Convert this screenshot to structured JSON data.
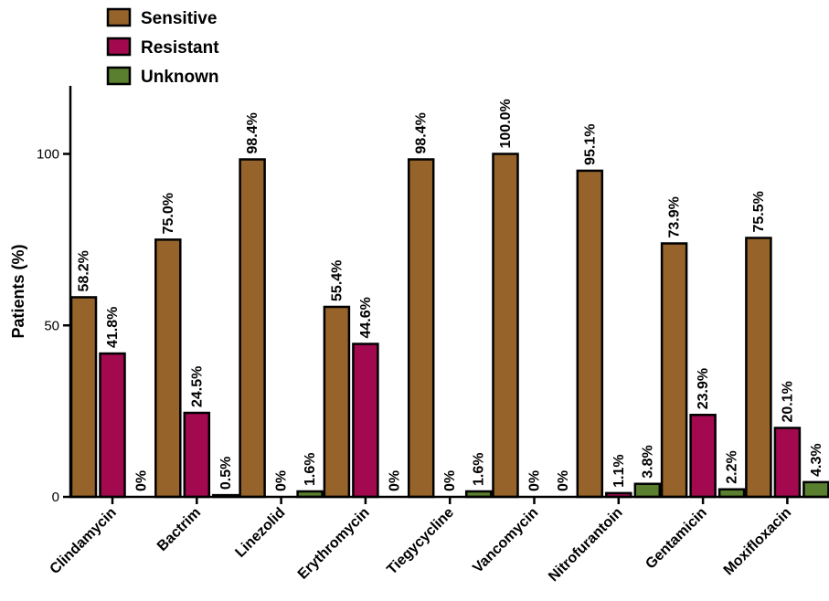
{
  "chart_data": {
    "type": "bar",
    "title": "",
    "xlabel": "",
    "ylabel": "Patients (%)",
    "ylim": [
      0,
      120
    ],
    "yticks": [
      0,
      50,
      100
    ],
    "grid": false,
    "legend_position": "top-left",
    "categories": [
      "Clindamycin",
      "Bactrim",
      "Linezolid",
      "Erythromycin",
      "Tiegycycline",
      "Vancomycin",
      "Nitrofurantoin",
      "Gentamicin",
      "Moxifloxacin"
    ],
    "series": [
      {
        "name": "Sensitive",
        "color": "#96642A",
        "values": [
          58.2,
          75.0,
          98.4,
          55.4,
          98.4,
          100.0,
          95.1,
          73.9,
          75.5
        ],
        "labels": [
          "58.2%",
          "75.0%",
          "98.4%",
          "55.4%",
          "98.4%",
          "100.0%",
          "95.1%",
          "73.9%",
          "75.5%"
        ]
      },
      {
        "name": "Resistant",
        "color": "#A2094F",
        "values": [
          41.8,
          24.5,
          0,
          44.6,
          0,
          0,
          1.1,
          23.9,
          20.1
        ],
        "labels": [
          "41.8%",
          "24.5%",
          "0%",
          "44.6%",
          "0%",
          "0%",
          "1.1%",
          "23.9%",
          "20.1%"
        ]
      },
      {
        "name": "Unknown",
        "color": "#5A7F2E",
        "values": [
          0,
          0.5,
          1.6,
          0,
          1.6,
          0,
          3.8,
          2.2,
          4.3
        ],
        "labels": [
          "0%",
          "0.5%",
          "1.6%",
          "0%",
          "1.6%",
          "0%",
          "3.8%",
          "2.2%",
          "4.3%"
        ]
      }
    ]
  }
}
